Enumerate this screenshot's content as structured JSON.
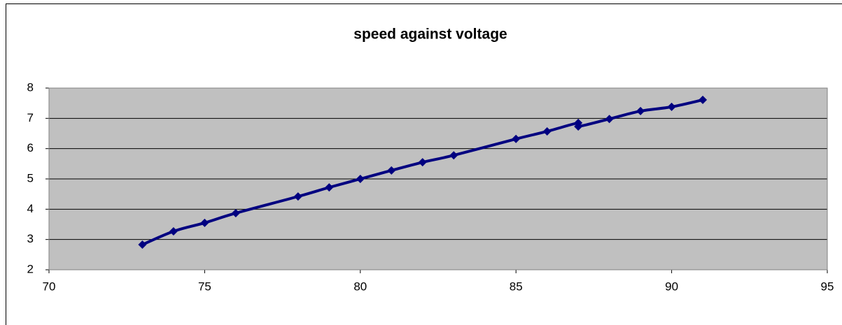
{
  "chart_data": {
    "type": "scatter",
    "title": "speed against voltage",
    "series": [
      {
        "color": "#000080",
        "x": [
          73,
          74,
          75,
          76,
          78,
          79,
          80,
          81,
          82,
          83,
          85,
          86,
          87,
          87,
          88,
          89,
          90,
          91
        ],
        "values": [
          2.83,
          3.27,
          3.55,
          3.87,
          4.42,
          4.72,
          5.0,
          5.28,
          5.55,
          5.78,
          6.32,
          6.57,
          6.85,
          6.73,
          6.98,
          7.24,
          7.38,
          7.61
        ]
      }
    ],
    "xlim": [
      70,
      95
    ],
    "xticks": [
      70,
      75,
      80,
      85,
      90,
      95
    ],
    "ylim": [
      2,
      8
    ],
    "yticks": [
      2,
      3,
      4,
      5,
      6,
      7,
      8
    ],
    "grid": true,
    "smooth": true
  }
}
